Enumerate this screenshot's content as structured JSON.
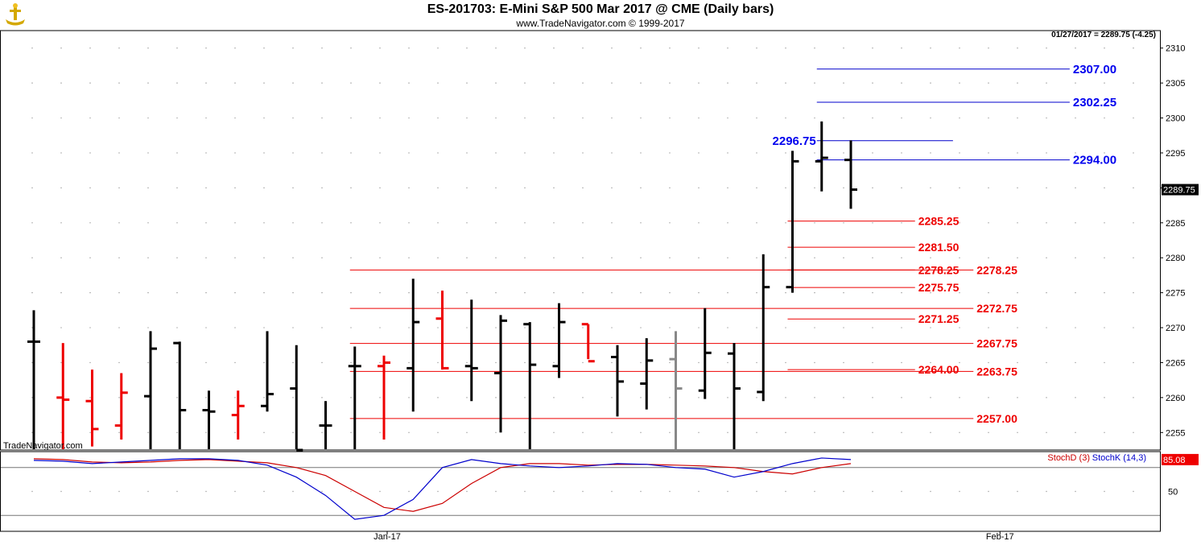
{
  "header": {
    "title": "ES-201703:  E-Mini S&P 500 Mar 2017 @ CME  (Daily bars)",
    "subtitle": "www.TradeNavigator.com © 1999-2017",
    "last_info": "01/27/2017 = 2289.75 (-4.25)",
    "watermark": "TradeNavigator.com"
  },
  "colors": {
    "up_bar": "#000000",
    "down_bar": "#ee0000",
    "neutral_bar": "#888888",
    "blue_level": "#0000cc",
    "red_level": "#ee0000",
    "stoch_d": "#cc0000",
    "stoch_k": "#0000cc",
    "grid": "#999999"
  },
  "chart_data": [
    {
      "type": "ohlc",
      "title": "ES-201703:  E-Mini S&P 500 Mar 2017 @ CME  (Daily bars)",
      "yticks": [
        2255,
        2260,
        2265,
        2270,
        2275,
        2280,
        2285,
        2290,
        2295,
        2300,
        2305,
        2310
      ],
      "ylim": [
        2252.5,
        2312.5
      ],
      "xticks": [
        {
          "label": "Jan-17",
          "bar": 12
        },
        {
          "label": "Feb-17",
          "bar": 33
        }
      ],
      "grid": true,
      "last_price": "2289.75",
      "bars": [
        {
          "o": 2268,
          "h": 2272.5,
          "l": 2250,
          "c": 2268,
          "color": "black"
        },
        {
          "o": 2260,
          "h": 2267.8,
          "l": 2250,
          "c": 2259.7,
          "color": "red"
        },
        {
          "o": 2259.5,
          "h": 2264,
          "l": 2253,
          "c": 2255.5,
          "color": "red"
        },
        {
          "o": 2256,
          "h": 2263.5,
          "l": 2254,
          "c": 2260.7,
          "color": "red"
        },
        {
          "o": 2260.2,
          "h": 2269.5,
          "l": 2250,
          "c": 2267,
          "color": "black"
        },
        {
          "o": 2267.8,
          "h": 2268,
          "l": 2250,
          "c": 2258.2,
          "color": "black"
        },
        {
          "o": 2258.2,
          "h": 2261,
          "l": 2252.5,
          "c": 2258,
          "color": "black"
        },
        {
          "o": 2257.5,
          "h": 2261,
          "l": 2254,
          "c": 2258.8,
          "color": "red"
        },
        {
          "o": 2258.8,
          "h": 2269.5,
          "l": 2258,
          "c": 2260.5,
          "color": "black"
        },
        {
          "o": 2261.3,
          "h": 2267.5,
          "l": 2252.5,
          "c": 2252.5,
          "color": "black"
        },
        {
          "o": 2256,
          "h": 2259.5,
          "l": 2251,
          "c": 2256,
          "color": "black"
        },
        {
          "o": 2264.5,
          "h": 2267.3,
          "l": 2252.5,
          "c": 2264.5,
          "color": "black"
        },
        {
          "o": 2264.5,
          "h": 2266,
          "l": 2254,
          "c": 2265,
          "color": "red"
        },
        {
          "o": 2264.2,
          "h": 2277,
          "l": 2258,
          "c": 2270.8,
          "color": "black"
        },
        {
          "o": 2271.3,
          "h": 2275.3,
          "l": 2264,
          "c": 2264.2,
          "color": "red"
        },
        {
          "o": 2264.5,
          "h": 2274,
          "l": 2259.5,
          "c": 2264.2,
          "color": "black"
        },
        {
          "o": 2263.5,
          "h": 2271.8,
          "l": 2255,
          "c": 2271,
          "color": "black"
        },
        {
          "o": 2270.5,
          "h": 2270.8,
          "l": 2252.5,
          "c": 2264.7,
          "color": "black"
        },
        {
          "o": 2264.5,
          "h": 2273.5,
          "l": 2262.8,
          "c": 2270.8,
          "color": "black"
        },
        {
          "o": 2270.5,
          "h": 2270.5,
          "l": 2265.5,
          "c": 2265.2,
          "color": "red"
        },
        {
          "o": 2265.8,
          "h": 2267.5,
          "l": 2257.3,
          "c": 2262.3,
          "color": "black"
        },
        {
          "o": 2262,
          "h": 2268.5,
          "l": 2258.3,
          "c": 2265.3,
          "color": "black"
        },
        {
          "o": 2265.5,
          "h": 2269.5,
          "l": 2252.5,
          "c": 2261.3,
          "color": "gray"
        },
        {
          "o": 2261,
          "h": 2272.8,
          "l": 2259.8,
          "c": 2266.4,
          "color": "black"
        },
        {
          "o": 2266.3,
          "h": 2267.8,
          "l": 2252.5,
          "c": 2261.3,
          "color": "black"
        },
        {
          "o": 2260.8,
          "h": 2280.5,
          "l": 2259.5,
          "c": 2275.8,
          "color": "black"
        },
        {
          "o": 2275.8,
          "h": 2295.3,
          "l": 2275,
          "c": 2293.8,
          "color": "black"
        },
        {
          "o": 2293.8,
          "h": 2299.5,
          "l": 2289.5,
          "c": 2294.3,
          "color": "black"
        },
        {
          "o": 2294.0,
          "h": 2296.8,
          "l": 2287,
          "c": 2289.75,
          "color": "black"
        }
      ],
      "levels": [
        {
          "value": 2307.0,
          "label": "2307.00",
          "color": "blue",
          "x_start_bar": 27,
          "x_end_bar": 35.5,
          "label_side": "right"
        },
        {
          "value": 2302.25,
          "label": "2302.25",
          "color": "blue",
          "x_start_bar": 27,
          "x_end_bar": 35.5,
          "label_side": "right"
        },
        {
          "value": 2296.75,
          "label": "2296.75",
          "color": "blue",
          "x_start_bar": 27,
          "x_end_bar": 31.5,
          "label_side": "left"
        },
        {
          "value": 2294.0,
          "label": "2294.00",
          "color": "blue",
          "x_start_bar": 27,
          "x_end_bar": 35.5,
          "label_side": "right"
        },
        {
          "value": 2285.25,
          "label": "2285.25",
          "color": "red",
          "x_start_bar": 26,
          "x_end_bar": 30.2,
          "label_side": "right"
        },
        {
          "value": 2281.5,
          "label": "2281.50",
          "color": "red",
          "x_start_bar": 26,
          "x_end_bar": 30.2,
          "label_side": "right"
        },
        {
          "value": 2278.25,
          "label": "2278.25",
          "color": "red",
          "x_start_bar": 26,
          "x_end_bar": 30.2,
          "label_side": "right"
        },
        {
          "value": 2278.25,
          "label": "2278.25",
          "color": "red",
          "x_start_bar": 11,
          "x_end_bar": 32.2,
          "label_side": "right"
        },
        {
          "value": 2275.75,
          "label": "2275.75",
          "color": "red",
          "x_start_bar": 26,
          "x_end_bar": 30.2,
          "label_side": "right"
        },
        {
          "value": 2272.75,
          "label": "2272.75",
          "color": "red",
          "x_start_bar": 11,
          "x_end_bar": 32.2,
          "label_side": "right"
        },
        {
          "value": 2271.25,
          "label": "2271.25",
          "color": "red",
          "x_start_bar": 26,
          "x_end_bar": 30.2,
          "label_side": "right"
        },
        {
          "value": 2267.75,
          "label": "2267.75",
          "color": "red",
          "x_start_bar": 11,
          "x_end_bar": 32.2,
          "label_side": "right"
        },
        {
          "value": 2264.0,
          "label": "2264.00",
          "color": "red",
          "x_start_bar": 26,
          "x_end_bar": 30.2,
          "label_side": "right"
        },
        {
          "value": 2263.75,
          "label": "2263.75",
          "color": "red",
          "x_start_bar": 11,
          "x_end_bar": 32.2,
          "label_side": "right"
        },
        {
          "value": 2257.0,
          "label": "2257.00",
          "color": "red",
          "x_start_bar": 11,
          "x_end_bar": 32.2,
          "label_side": "right"
        }
      ]
    },
    {
      "type": "line",
      "title": "",
      "yticks": [
        50
      ],
      "ylim": [
        0,
        100
      ],
      "last_value": "85.08",
      "legend": [
        {
          "name": "StochD (3)",
          "color": "red"
        },
        {
          "name": "StochK (14,3)",
          "color": "blue"
        }
      ],
      "series": [
        {
          "name": "StochD (3)",
          "values": [
            91,
            90,
            87,
            86,
            87,
            89,
            90,
            88,
            86,
            80,
            70,
            50,
            30,
            25,
            35,
            60,
            80,
            85,
            85,
            83,
            84,
            84,
            83,
            82,
            80,
            75,
            72,
            80,
            85
          ]
        },
        {
          "name": "StochK (14,3)",
          "values": [
            89,
            88,
            85,
            87,
            89,
            91,
            91,
            89,
            83,
            68,
            45,
            15,
            20,
            40,
            80,
            90,
            85,
            82,
            80,
            82,
            85,
            84,
            80,
            78,
            68,
            75,
            85,
            92,
            90
          ]
        }
      ]
    }
  ]
}
